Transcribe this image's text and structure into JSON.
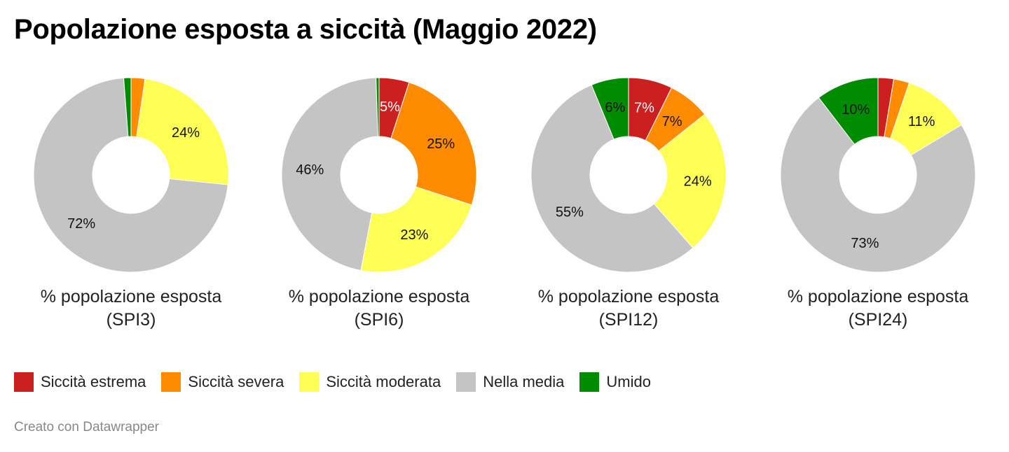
{
  "title": "Popolazione esposta a siccità (Maggio 2022)",
  "footer": "Creato con Datawrapper",
  "legend": [
    {
      "label": "Siccità estrema",
      "color": "#cc1f1f"
    },
    {
      "label": "Siccità severa",
      "color": "#ff8c00"
    },
    {
      "label": "Siccità moderata",
      "color": "#ffff55"
    },
    {
      "label": "Nella media",
      "color": "#c4c4c4"
    },
    {
      "label": "Umido",
      "color": "#008c00"
    }
  ],
  "chart_data": [
    {
      "type": "pie",
      "subtype": "donut",
      "title": "% popolazione esposta (SPI3)",
      "title_lines": [
        "% popolazione esposta",
        "(SPI3)"
      ],
      "categories": [
        "Siccità estrema",
        "Siccità severa",
        "Siccità moderata",
        "Nella media",
        "Umido"
      ],
      "values": [
        0,
        2.3,
        24.3,
        72.2,
        1.2
      ],
      "labels": [
        "",
        "",
        "24%",
        "72%",
        ""
      ]
    },
    {
      "type": "pie",
      "subtype": "donut",
      "title": "% popolazione esposta (SPI6)",
      "title_lines": [
        "% popolazione esposta",
        "(SPI6)"
      ],
      "categories": [
        "Siccità estrema",
        "Siccità severa",
        "Siccità moderata",
        "Nella media",
        "Umido"
      ],
      "values": [
        5,
        25,
        23,
        46.5,
        0.5
      ],
      "labels": [
        "5%",
        "25%",
        "23%",
        "46%",
        ""
      ]
    },
    {
      "type": "pie",
      "subtype": "donut",
      "title": "% popolazione esposta (SPI12)",
      "title_lines": [
        "% popolazione esposta",
        "(SPI12)"
      ],
      "categories": [
        "Siccità estrema",
        "Siccità severa",
        "Siccità moderata",
        "Nella media",
        "Umido"
      ],
      "values": [
        7.3,
        7,
        24.2,
        55.3,
        6.2
      ],
      "labels": [
        "7%",
        "7%",
        "24%",
        "55%",
        "6%"
      ]
    },
    {
      "type": "pie",
      "subtype": "donut",
      "title": "% popolazione esposta (SPI24)",
      "title_lines": [
        "% popolazione esposta",
        "(SPI24)"
      ],
      "categories": [
        "Siccità estrema",
        "Siccità severa",
        "Siccità moderata",
        "Nella media",
        "Umido"
      ],
      "values": [
        2.6,
        2.6,
        11.2,
        73.2,
        10.4
      ],
      "labels": [
        "",
        "",
        "11%",
        "73%",
        "10%"
      ]
    }
  ]
}
